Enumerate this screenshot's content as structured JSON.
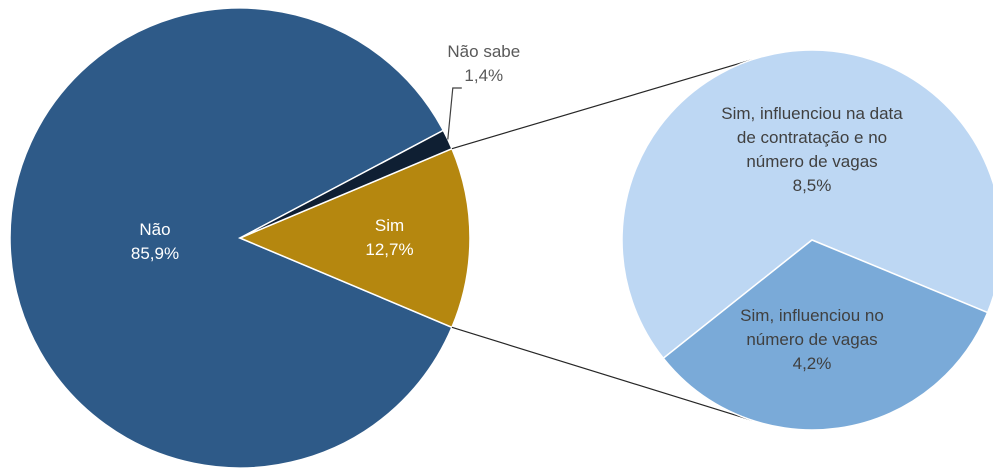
{
  "chart_data": {
    "type": "pie-of-pie",
    "slices": [
      {
        "label": "Não",
        "value": 85.9,
        "value_label": "85,9%",
        "color": "#2e5a88"
      },
      {
        "label": "Sim",
        "value": 12.7,
        "value_label": "12,7%",
        "color": "#b5870f",
        "slices": [
          {
            "label": "Sim, influenciou na data de contratação e no número de vagas",
            "value": 8.5,
            "value_label": "8,5%",
            "color": "#bdd7f3"
          },
          {
            "label": "Sim, influenciou no número de vagas",
            "value": 4.2,
            "value_label": "4,2%",
            "color": "#7aaad8"
          }
        ]
      },
      {
        "label": "Não sabe",
        "value": 1.4,
        "value_label": "1,4%",
        "color": "#0f1f33"
      }
    ]
  }
}
